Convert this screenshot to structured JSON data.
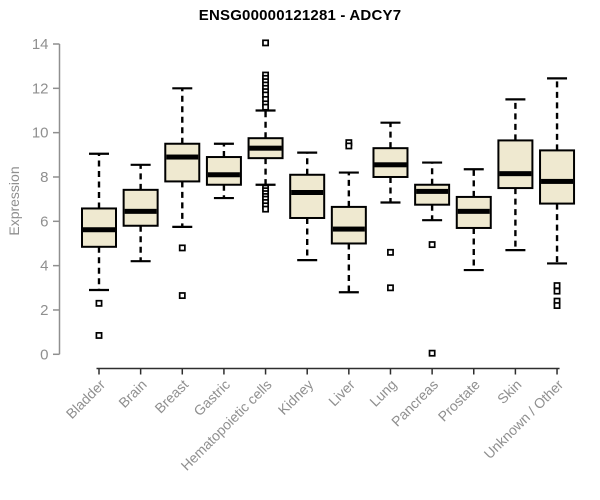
{
  "styles": {
    "box_fill": "#EFE9D0",
    "box_stroke": "#000000",
    "median_color": "#000000",
    "whisker_color": "#000000",
    "outlier_fill": "#ffffff",
    "outlier_stroke": "#000000",
    "y_axis_color": "#8f8f8f",
    "y_tick_label_color": "#8f8f8f",
    "x_axis_color": "#2e2e2e",
    "x_label_color": "#8f8f8f",
    "title_color": "#000000",
    "background": "#ffffff"
  },
  "chart_data": {
    "type": "boxplot",
    "title": "ENSG00000121281 - ADCY7",
    "xlabel": "",
    "ylabel": "Expression",
    "ylim": [
      0,
      14
    ],
    "y_ticks": [
      0,
      2,
      4,
      6,
      8,
      10,
      12,
      14
    ],
    "grid": false,
    "legend": "none",
    "categories": [
      "Bladder",
      "Brain",
      "Breast",
      "Gastric",
      "Hematopoietic cells",
      "Kidney",
      "Liver",
      "Lung",
      "Pancreas",
      "Prostate",
      "Skin",
      "Unknown / Other"
    ],
    "series": [
      {
        "category": "Bladder",
        "whisker_low": 2.9,
        "q1": 4.85,
        "median": 5.62,
        "q3": 6.58,
        "whisker_high": 9.05,
        "outliers": [
          2.3,
          0.85
        ]
      },
      {
        "category": "Brain",
        "whisker_low": 4.2,
        "q1": 5.8,
        "median": 6.45,
        "q3": 7.42,
        "whisker_high": 8.55,
        "outliers": []
      },
      {
        "category": "Breast",
        "whisker_low": 5.75,
        "q1": 7.8,
        "median": 8.9,
        "q3": 9.5,
        "whisker_high": 12.0,
        "outliers": [
          4.8,
          2.65
        ]
      },
      {
        "category": "Gastric",
        "whisker_low": 7.05,
        "q1": 7.65,
        "median": 8.1,
        "q3": 8.9,
        "whisker_high": 9.5,
        "outliers": []
      },
      {
        "category": "Hematopoietic cells",
        "whisker_low": 7.65,
        "q1": 8.85,
        "median": 9.3,
        "q3": 9.75,
        "whisker_high": 11.0,
        "outliers": [
          14.05,
          12.6,
          12.45,
          12.3,
          12.15,
          12.0,
          11.85,
          11.7,
          11.5,
          11.3,
          11.15,
          7.5,
          7.38,
          7.25,
          7.12,
          7.0,
          6.85,
          6.7,
          6.55
        ]
      },
      {
        "category": "Kidney",
        "whisker_low": 4.25,
        "q1": 6.15,
        "median": 7.3,
        "q3": 8.1,
        "whisker_high": 9.1,
        "outliers": []
      },
      {
        "category": "Liver",
        "whisker_low": 2.8,
        "q1": 5.0,
        "median": 5.65,
        "q3": 6.65,
        "whisker_high": 8.2,
        "outliers": [
          9.55,
          9.4
        ]
      },
      {
        "category": "Lung",
        "whisker_low": 6.85,
        "q1": 8.0,
        "median": 8.55,
        "q3": 9.3,
        "whisker_high": 10.45,
        "outliers": [
          4.6,
          3.0
        ]
      },
      {
        "category": "Pancreas",
        "whisker_low": 6.05,
        "q1": 6.75,
        "median": 7.35,
        "q3": 7.65,
        "whisker_high": 8.65,
        "outliers": [
          4.95,
          0.05
        ]
      },
      {
        "category": "Prostate",
        "whisker_low": 3.8,
        "q1": 5.7,
        "median": 6.45,
        "q3": 7.1,
        "whisker_high": 8.35,
        "outliers": []
      },
      {
        "category": "Skin",
        "whisker_low": 4.7,
        "q1": 7.5,
        "median": 8.15,
        "q3": 9.65,
        "whisker_high": 11.5,
        "outliers": []
      },
      {
        "category": "Unknown / Other",
        "whisker_low": 4.1,
        "q1": 6.8,
        "median": 7.8,
        "q3": 9.2,
        "whisker_high": 12.45,
        "outliers": [
          3.1,
          2.85,
          2.4,
          2.2
        ]
      }
    ]
  }
}
